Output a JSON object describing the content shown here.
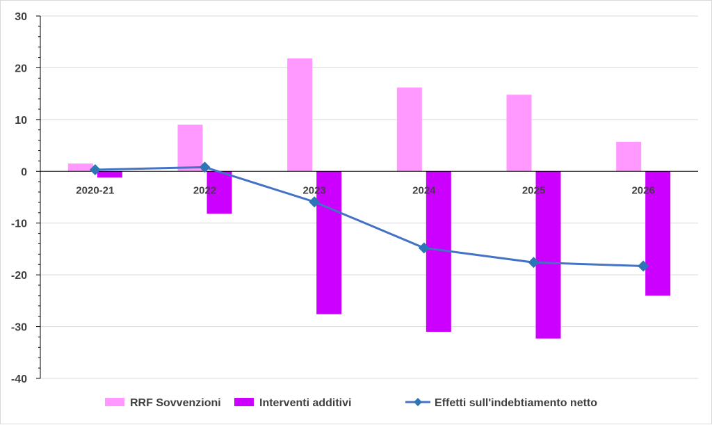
{
  "chart_data": {
    "type": "bar",
    "categories": [
      "2020-21",
      "2022",
      "2023",
      "2024",
      "2025",
      "2026"
    ],
    "series": [
      {
        "name": "RRF Sovvenzioni",
        "kind": "bar",
        "color": "#ff99ff",
        "values": [
          1.5,
          9.0,
          21.8,
          16.2,
          14.8,
          5.7
        ]
      },
      {
        "name": "Interventi additivi",
        "kind": "bar",
        "color": "#cc00ff",
        "values": [
          -1.2,
          -8.2,
          -27.6,
          -31.0,
          -32.3,
          -24.0
        ]
      },
      {
        "name": "Effetti sull'indebtiamento netto",
        "kind": "line",
        "color": "#4472c4",
        "values": [
          0.3,
          0.8,
          -5.9,
          -14.8,
          -17.6,
          -18.3
        ]
      }
    ],
    "ylim": [
      -40,
      30
    ],
    "yticks": [
      "30",
      "20",
      "10",
      "0",
      "-10",
      "-20",
      "-30",
      "-40"
    ],
    "ytick_values": [
      30,
      20,
      10,
      0,
      -10,
      -20,
      -30,
      -40
    ],
    "grid": true,
    "legend_position": "bottom"
  }
}
